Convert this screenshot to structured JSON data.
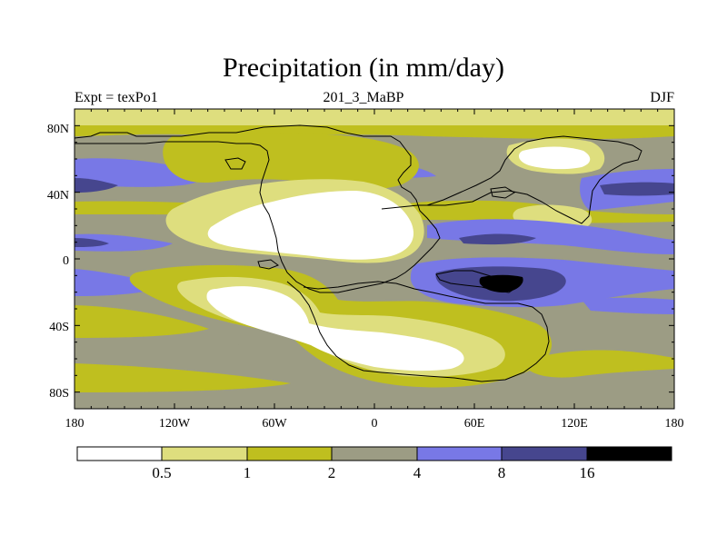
{
  "title": "Precipitation (in mm/day)",
  "subtitle_left": "Expt = texPo1",
  "subtitle_center": "201_3_MaBP",
  "subtitle_right": "DJF",
  "y_ticks": [
    "80N",
    "40N",
    "0",
    "40S",
    "80S"
  ],
  "x_ticks": [
    "180",
    "120W",
    "60W",
    "0",
    "60E",
    "120E",
    "180"
  ],
  "legend": {
    "labels": [
      "0.5",
      "1",
      "2",
      "4",
      "8",
      "16"
    ],
    "colors": [
      "#ffffff",
      "#dede7e",
      "#bfbf1f",
      "#9c9c84",
      "#7878e6",
      "#46468e",
      "#000000"
    ]
  },
  "colors": {
    "very_dry": "#ffffff",
    "dry": "#dede7e",
    "low": "#bfbf1f",
    "moderate": "#9c9c84",
    "wet": "#7878e6",
    "very_wet": "#46468e",
    "extreme": "#000000"
  }
}
